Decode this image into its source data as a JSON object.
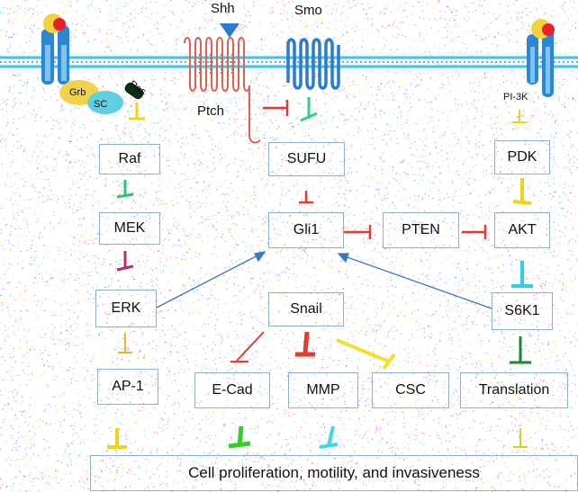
{
  "ligand": {
    "shh": "Shh",
    "smo": "Smo",
    "ptch": "Ptch"
  },
  "receptor_left": {
    "grb": "Grb",
    "sc": "SC",
    "ras": "Ras"
  },
  "receptor_right": {
    "pi3k": "PI-3K"
  },
  "nodes": {
    "raf": "Raf",
    "mek": "MEK",
    "erk": "ERK",
    "ap1": "AP-1",
    "sufu": "SUFU",
    "gli1": "Gli1",
    "snail": "Snail",
    "ecad": "E-Cad",
    "mmp": "MMP",
    "csc": "CSC",
    "pten": "PTEN",
    "pdk": "PDK",
    "akt": "AKT",
    "s6k1": "S6K1",
    "translation": "Translation"
  },
  "outcome": "Cell proliferation, motility, and invasiveness",
  "colors": {
    "membrane": "#43c3e6",
    "receptor": "#2b87d6",
    "ptch": "#e0614f",
    "smo": "#2b7bd0",
    "inhibit": "#e83b2e",
    "node_border": "#8fb0cc",
    "arrow_blue": "#3a78c6"
  }
}
